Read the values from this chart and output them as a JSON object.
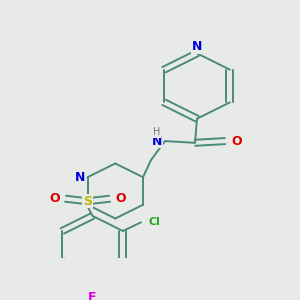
{
  "background_color": "#e8eae8",
  "bond_color": "#4a8a7a",
  "N_color": "#0000dd",
  "O_color": "#dd0000",
  "S_color": "#bbbb00",
  "Cl_color": "#22aa22",
  "F_color": "#dd00dd",
  "H_color": "#777777",
  "figsize": [
    3.0,
    3.0
  ],
  "dpi": 100,
  "xlim": [
    0,
    300
  ],
  "ylim": [
    0,
    300
  ]
}
